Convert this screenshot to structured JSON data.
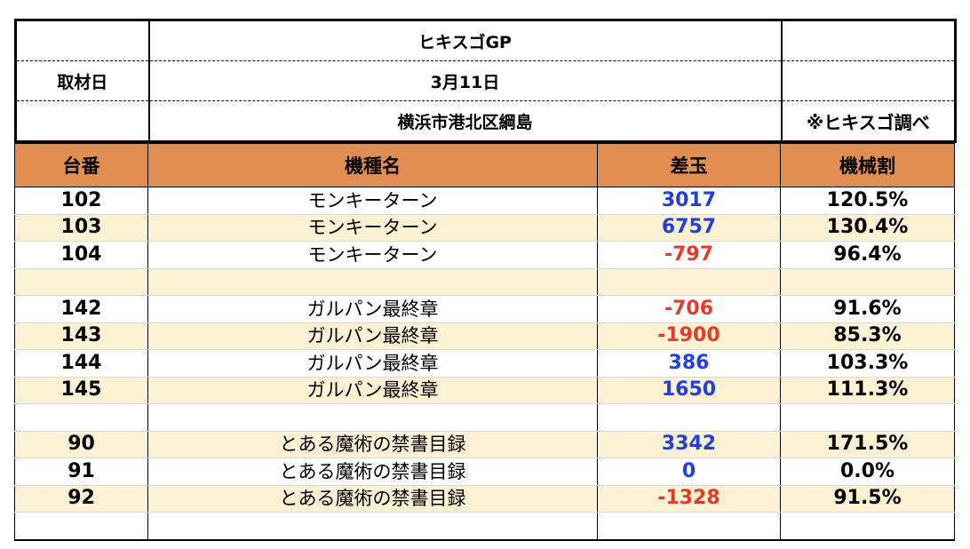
{
  "header": {
    "title": "ヒキスゴGP",
    "date_label": "取材日",
    "date": "3月11日",
    "location": "横浜市港北区綱島",
    "source": "※ヒキスゴ調べ"
  },
  "columns": {
    "machine_no": "台番",
    "model": "機種名",
    "diff": "差玉",
    "payout": "機械割"
  },
  "rows": [
    {
      "no": "102",
      "model": "モンキーターン",
      "diff": "3017",
      "sign": "pos",
      "payout": "120.5%"
    },
    {
      "no": "103",
      "model": "モンキーターン",
      "diff": "6757",
      "sign": "pos",
      "payout": "130.4%"
    },
    {
      "no": "104",
      "model": "モンキーターン",
      "diff": "-797",
      "sign": "neg",
      "payout": "96.4%"
    },
    {
      "no": "",
      "model": "",
      "diff": "",
      "sign": "",
      "payout": ""
    },
    {
      "no": "142",
      "model": "ガルパン最終章",
      "diff": "-706",
      "sign": "neg",
      "payout": "91.6%"
    },
    {
      "no": "143",
      "model": "ガルパン最終章",
      "diff": "-1900",
      "sign": "neg",
      "payout": "85.3%"
    },
    {
      "no": "144",
      "model": "ガルパン最終章",
      "diff": "386",
      "sign": "pos",
      "payout": "103.3%"
    },
    {
      "no": "145",
      "model": "ガルパン最終章",
      "diff": "1650",
      "sign": "pos",
      "payout": "111.3%"
    },
    {
      "no": "",
      "model": "",
      "diff": "",
      "sign": "",
      "payout": ""
    },
    {
      "no": "90",
      "model": "とある魔術の禁書目録",
      "diff": "3342",
      "sign": "pos",
      "payout": "171.5%"
    },
    {
      "no": "91",
      "model": "とある魔術の禁書目録",
      "diff": "0",
      "sign": "pos",
      "payout": "0.0%"
    },
    {
      "no": "92",
      "model": "とある魔術の禁書目録",
      "diff": "-1328",
      "sign": "neg",
      "payout": "91.5%"
    },
    {
      "no": "",
      "model": "",
      "diff": "",
      "sign": "",
      "payout": ""
    }
  ],
  "colors": {
    "header_fill": "#e08d4f",
    "stripe_fill": "#fdf1d3",
    "positive": "#1f3fe0",
    "negative": "#e33b2a"
  }
}
